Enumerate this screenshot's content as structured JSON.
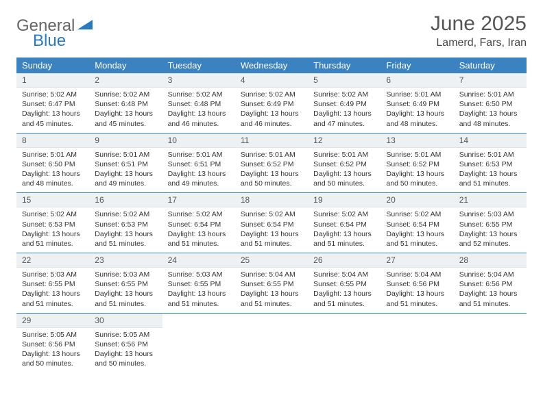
{
  "logo": {
    "part1": "General",
    "part2": "Blue"
  },
  "title": "June 2025",
  "location": "Lamerd, Fars, Iran",
  "colors": {
    "header_bg": "#3b83c0",
    "header_text": "#ffffff",
    "daynum_bg": "#eef1f3",
    "border": "#3b83c0",
    "text": "#333333",
    "logo_gray": "#666666",
    "logo_blue": "#2a7ac0"
  },
  "daysOfWeek": [
    "Sunday",
    "Monday",
    "Tuesday",
    "Wednesday",
    "Thursday",
    "Friday",
    "Saturday"
  ],
  "weeks": [
    [
      {
        "n": "1",
        "sr": "Sunrise: 5:02 AM",
        "ss": "Sunset: 6:47 PM",
        "dl1": "Daylight: 13 hours",
        "dl2": "and 45 minutes."
      },
      {
        "n": "2",
        "sr": "Sunrise: 5:02 AM",
        "ss": "Sunset: 6:48 PM",
        "dl1": "Daylight: 13 hours",
        "dl2": "and 45 minutes."
      },
      {
        "n": "3",
        "sr": "Sunrise: 5:02 AM",
        "ss": "Sunset: 6:48 PM",
        "dl1": "Daylight: 13 hours",
        "dl2": "and 46 minutes."
      },
      {
        "n": "4",
        "sr": "Sunrise: 5:02 AM",
        "ss": "Sunset: 6:49 PM",
        "dl1": "Daylight: 13 hours",
        "dl2": "and 46 minutes."
      },
      {
        "n": "5",
        "sr": "Sunrise: 5:02 AM",
        "ss": "Sunset: 6:49 PM",
        "dl1": "Daylight: 13 hours",
        "dl2": "and 47 minutes."
      },
      {
        "n": "6",
        "sr": "Sunrise: 5:01 AM",
        "ss": "Sunset: 6:49 PM",
        "dl1": "Daylight: 13 hours",
        "dl2": "and 48 minutes."
      },
      {
        "n": "7",
        "sr": "Sunrise: 5:01 AM",
        "ss": "Sunset: 6:50 PM",
        "dl1": "Daylight: 13 hours",
        "dl2": "and 48 minutes."
      }
    ],
    [
      {
        "n": "8",
        "sr": "Sunrise: 5:01 AM",
        "ss": "Sunset: 6:50 PM",
        "dl1": "Daylight: 13 hours",
        "dl2": "and 48 minutes."
      },
      {
        "n": "9",
        "sr": "Sunrise: 5:01 AM",
        "ss": "Sunset: 6:51 PM",
        "dl1": "Daylight: 13 hours",
        "dl2": "and 49 minutes."
      },
      {
        "n": "10",
        "sr": "Sunrise: 5:01 AM",
        "ss": "Sunset: 6:51 PM",
        "dl1": "Daylight: 13 hours",
        "dl2": "and 49 minutes."
      },
      {
        "n": "11",
        "sr": "Sunrise: 5:01 AM",
        "ss": "Sunset: 6:52 PM",
        "dl1": "Daylight: 13 hours",
        "dl2": "and 50 minutes."
      },
      {
        "n": "12",
        "sr": "Sunrise: 5:01 AM",
        "ss": "Sunset: 6:52 PM",
        "dl1": "Daylight: 13 hours",
        "dl2": "and 50 minutes."
      },
      {
        "n": "13",
        "sr": "Sunrise: 5:01 AM",
        "ss": "Sunset: 6:52 PM",
        "dl1": "Daylight: 13 hours",
        "dl2": "and 50 minutes."
      },
      {
        "n": "14",
        "sr": "Sunrise: 5:01 AM",
        "ss": "Sunset: 6:53 PM",
        "dl1": "Daylight: 13 hours",
        "dl2": "and 51 minutes."
      }
    ],
    [
      {
        "n": "15",
        "sr": "Sunrise: 5:02 AM",
        "ss": "Sunset: 6:53 PM",
        "dl1": "Daylight: 13 hours",
        "dl2": "and 51 minutes."
      },
      {
        "n": "16",
        "sr": "Sunrise: 5:02 AM",
        "ss": "Sunset: 6:53 PM",
        "dl1": "Daylight: 13 hours",
        "dl2": "and 51 minutes."
      },
      {
        "n": "17",
        "sr": "Sunrise: 5:02 AM",
        "ss": "Sunset: 6:54 PM",
        "dl1": "Daylight: 13 hours",
        "dl2": "and 51 minutes."
      },
      {
        "n": "18",
        "sr": "Sunrise: 5:02 AM",
        "ss": "Sunset: 6:54 PM",
        "dl1": "Daylight: 13 hours",
        "dl2": "and 51 minutes."
      },
      {
        "n": "19",
        "sr": "Sunrise: 5:02 AM",
        "ss": "Sunset: 6:54 PM",
        "dl1": "Daylight: 13 hours",
        "dl2": "and 51 minutes."
      },
      {
        "n": "20",
        "sr": "Sunrise: 5:02 AM",
        "ss": "Sunset: 6:54 PM",
        "dl1": "Daylight: 13 hours",
        "dl2": "and 51 minutes."
      },
      {
        "n": "21",
        "sr": "Sunrise: 5:03 AM",
        "ss": "Sunset: 6:55 PM",
        "dl1": "Daylight: 13 hours",
        "dl2": "and 52 minutes."
      }
    ],
    [
      {
        "n": "22",
        "sr": "Sunrise: 5:03 AM",
        "ss": "Sunset: 6:55 PM",
        "dl1": "Daylight: 13 hours",
        "dl2": "and 51 minutes."
      },
      {
        "n": "23",
        "sr": "Sunrise: 5:03 AM",
        "ss": "Sunset: 6:55 PM",
        "dl1": "Daylight: 13 hours",
        "dl2": "and 51 minutes."
      },
      {
        "n": "24",
        "sr": "Sunrise: 5:03 AM",
        "ss": "Sunset: 6:55 PM",
        "dl1": "Daylight: 13 hours",
        "dl2": "and 51 minutes."
      },
      {
        "n": "25",
        "sr": "Sunrise: 5:04 AM",
        "ss": "Sunset: 6:55 PM",
        "dl1": "Daylight: 13 hours",
        "dl2": "and 51 minutes."
      },
      {
        "n": "26",
        "sr": "Sunrise: 5:04 AM",
        "ss": "Sunset: 6:55 PM",
        "dl1": "Daylight: 13 hours",
        "dl2": "and 51 minutes."
      },
      {
        "n": "27",
        "sr": "Sunrise: 5:04 AM",
        "ss": "Sunset: 6:56 PM",
        "dl1": "Daylight: 13 hours",
        "dl2": "and 51 minutes."
      },
      {
        "n": "28",
        "sr": "Sunrise: 5:04 AM",
        "ss": "Sunset: 6:56 PM",
        "dl1": "Daylight: 13 hours",
        "dl2": "and 51 minutes."
      }
    ],
    [
      {
        "n": "29",
        "sr": "Sunrise: 5:05 AM",
        "ss": "Sunset: 6:56 PM",
        "dl1": "Daylight: 13 hours",
        "dl2": "and 50 minutes."
      },
      {
        "n": "30",
        "sr": "Sunrise: 5:05 AM",
        "ss": "Sunset: 6:56 PM",
        "dl1": "Daylight: 13 hours",
        "dl2": "and 50 minutes."
      },
      {
        "empty": true
      },
      {
        "empty": true
      },
      {
        "empty": true
      },
      {
        "empty": true
      },
      {
        "empty": true
      }
    ]
  ]
}
